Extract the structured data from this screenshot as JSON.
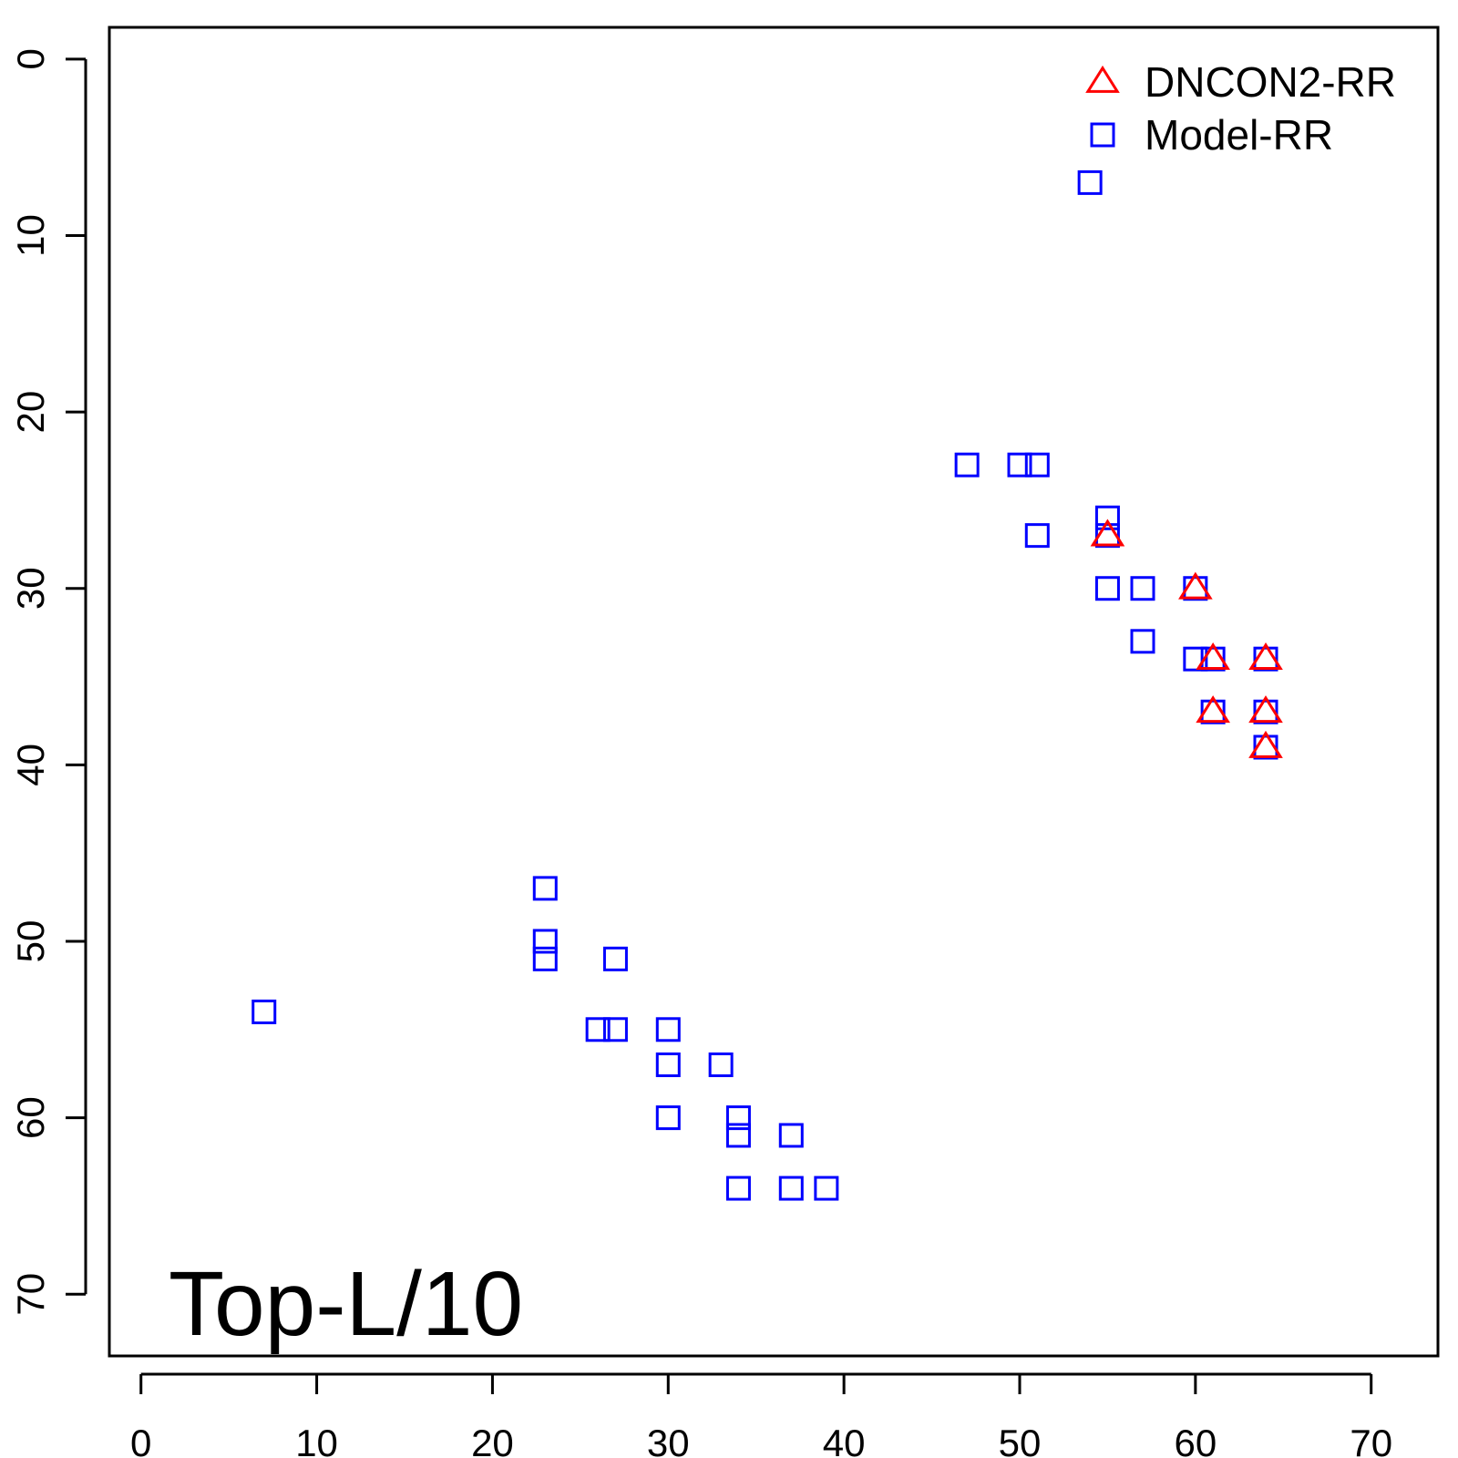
{
  "chart_data": {
    "type": "scatter",
    "title": "",
    "xlabel": "",
    "ylabel": "",
    "xlim": [
      -1.8,
      73.8
    ],
    "ylim": [
      73.5,
      -1.8
    ],
    "y_axis_inverted": true,
    "xticks": [
      0,
      10,
      20,
      30,
      40,
      50,
      60,
      70
    ],
    "yticks": [
      0,
      10,
      20,
      30,
      40,
      50,
      60,
      70
    ],
    "grid": false,
    "legend_position": "top-right",
    "annotation": "Top-L/10",
    "colors": {
      "DNCON2-RR": "#ff0000",
      "Model-RR": "#0000ff"
    },
    "series": [
      {
        "name": "DNCON2-RR",
        "marker": "triangle-open",
        "color": "#ff0000",
        "points": [
          [
            55,
            27
          ],
          [
            60,
            30
          ],
          [
            61,
            34
          ],
          [
            64,
            34
          ],
          [
            61,
            37
          ],
          [
            64,
            37
          ],
          [
            64,
            39
          ]
        ]
      },
      {
        "name": "Model-RR",
        "marker": "square-open",
        "color": "#0000ff",
        "points": [
          [
            54,
            7
          ],
          [
            47,
            23
          ],
          [
            50,
            23
          ],
          [
            51,
            23
          ],
          [
            55,
            26
          ],
          [
            55,
            27
          ],
          [
            51,
            27
          ],
          [
            55,
            30
          ],
          [
            57,
            30
          ],
          [
            60,
            30
          ],
          [
            57,
            33
          ],
          [
            60,
            34
          ],
          [
            61,
            34
          ],
          [
            64,
            34
          ],
          [
            61,
            37
          ],
          [
            64,
            37
          ],
          [
            64,
            39
          ],
          [
            23,
            47
          ],
          [
            23,
            50
          ],
          [
            23,
            51
          ],
          [
            27,
            51
          ],
          [
            7,
            54
          ],
          [
            26,
            55
          ],
          [
            27,
            55
          ],
          [
            30,
            55
          ],
          [
            30,
            57
          ],
          [
            33,
            57
          ],
          [
            30,
            60
          ],
          [
            34,
            60
          ],
          [
            34,
            61
          ],
          [
            37,
            61
          ],
          [
            34,
            64
          ],
          [
            37,
            64
          ],
          [
            39,
            64
          ]
        ]
      }
    ]
  }
}
